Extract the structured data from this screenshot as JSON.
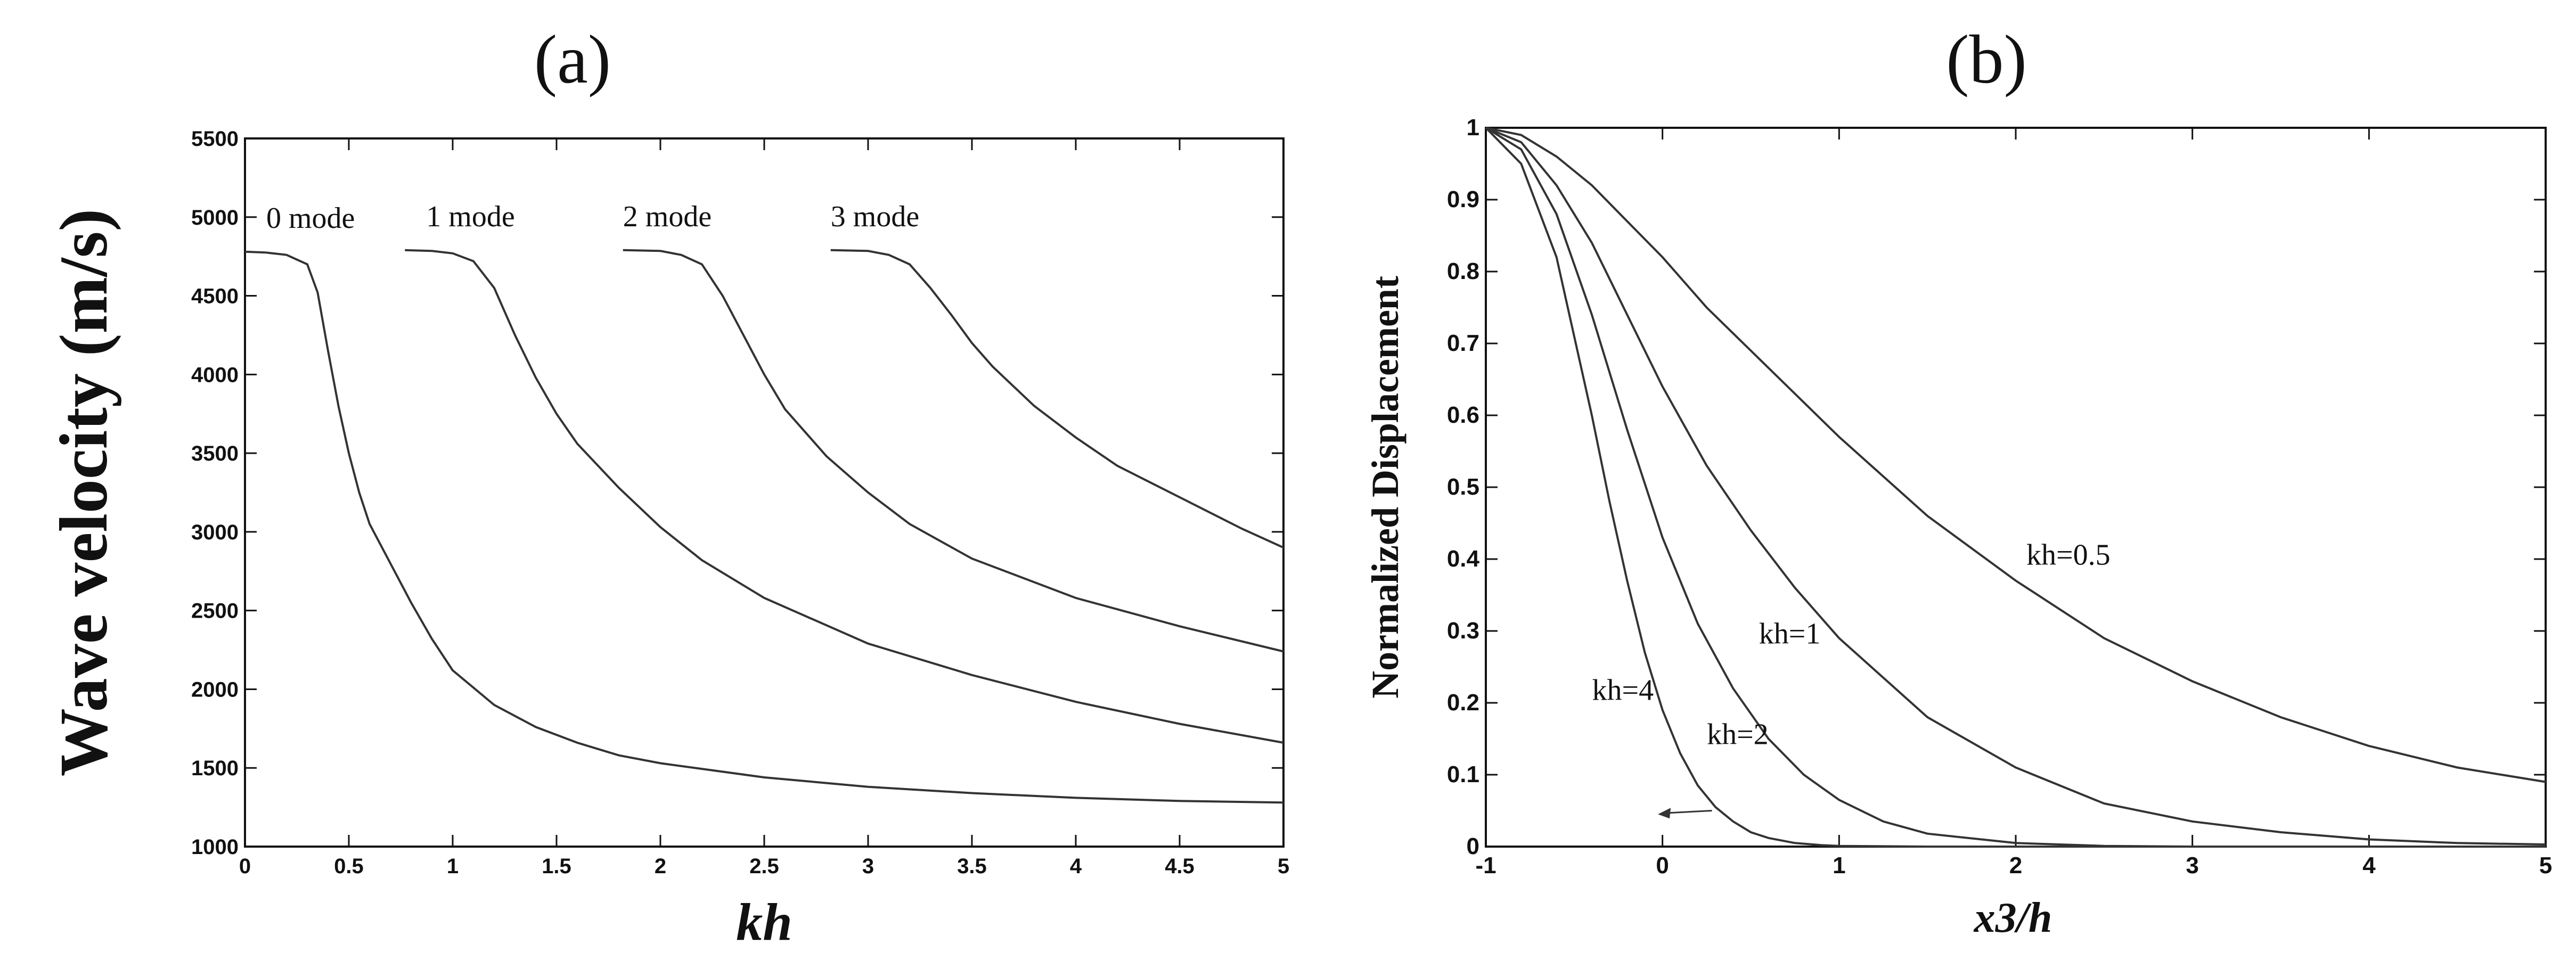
{
  "chart_data": [
    {
      "type": "line",
      "panel_label": "(a)",
      "xlabel": "kh",
      "ylabel": "Wave velocity (m/s)",
      "xlim": [
        0,
        5
      ],
      "ylim": [
        1000,
        5500
      ],
      "xticks": [
        "0",
        "0.5",
        "1",
        "1.5",
        "2",
        "2.5",
        "3",
        "3.5",
        "4",
        "4.5",
        "5"
      ],
      "yticks": [
        "1000",
        "1500",
        "2000",
        "2500",
        "3000",
        "3500",
        "4000",
        "4500",
        "5000",
        "5500"
      ],
      "grid": false,
      "series": [
        {
          "name": "0 mode",
          "x": [
            0,
            0.1,
            0.2,
            0.3,
            0.35,
            0.4,
            0.45,
            0.5,
            0.55,
            0.6,
            0.7,
            0.8,
            0.9,
            1.0,
            1.2,
            1.4,
            1.6,
            1.8,
            2.0,
            2.5,
            3.0,
            3.5,
            4.0,
            4.5,
            5.0
          ],
          "y": [
            4780,
            4775,
            4760,
            4700,
            4520,
            4150,
            3800,
            3500,
            3250,
            3050,
            2800,
            2550,
            2320,
            2120,
            1900,
            1760,
            1660,
            1580,
            1530,
            1440,
            1380,
            1340,
            1310,
            1290,
            1280
          ]
        },
        {
          "name": "1 mode",
          "x": [
            0.77,
            0.9,
            1.0,
            1.1,
            1.2,
            1.3,
            1.4,
            1.5,
            1.6,
            1.8,
            2.0,
            2.2,
            2.5,
            3.0,
            3.5,
            4.0,
            4.5,
            5.0
          ],
          "y": [
            4790,
            4785,
            4770,
            4720,
            4550,
            4250,
            3980,
            3750,
            3560,
            3280,
            3030,
            2820,
            2580,
            2290,
            2090,
            1920,
            1780,
            1660
          ]
        },
        {
          "name": "2 mode",
          "x": [
            1.82,
            2.0,
            2.1,
            2.2,
            2.3,
            2.4,
            2.5,
            2.6,
            2.8,
            3.0,
            3.2,
            3.5,
            4.0,
            4.5,
            5.0
          ],
          "y": [
            4790,
            4785,
            4760,
            4700,
            4500,
            4250,
            4000,
            3780,
            3480,
            3250,
            3050,
            2830,
            2580,
            2400,
            2240
          ]
        },
        {
          "name": "3 mode",
          "x": [
            2.82,
            3.0,
            3.1,
            3.2,
            3.3,
            3.4,
            3.5,
            3.6,
            3.8,
            4.0,
            4.2,
            4.5,
            4.8,
            5.0
          ],
          "y": [
            4790,
            4785,
            4760,
            4700,
            4550,
            4380,
            4200,
            4050,
            3800,
            3600,
            3420,
            3220,
            3020,
            2900
          ]
        }
      ]
    },
    {
      "type": "line",
      "panel_label": "(b)",
      "xlabel": "x3/h",
      "ylabel": "Normalized Displacement",
      "xlim": [
        -1,
        5
      ],
      "ylim": [
        0,
        1
      ],
      "xticks": [
        "-1",
        "0",
        "1",
        "2",
        "3",
        "4",
        "5"
      ],
      "yticks": [
        "0",
        "0.1",
        "0.2",
        "0.3",
        "0.4",
        "0.5",
        "0.6",
        "0.7",
        "0.8",
        "0.9",
        "1"
      ],
      "grid": false,
      "series": [
        {
          "name": "kh=0.5",
          "x": [
            -1,
            -0.8,
            -0.6,
            -0.4,
            -0.2,
            0,
            0.25,
            0.5,
            0.75,
            1.0,
            1.5,
            2.0,
            2.5,
            3.0,
            3.5,
            4.0,
            4.5,
            5.0
          ],
          "y": [
            1.0,
            0.99,
            0.96,
            0.92,
            0.87,
            0.82,
            0.75,
            0.69,
            0.63,
            0.57,
            0.46,
            0.37,
            0.29,
            0.23,
            0.18,
            0.14,
            0.11,
            0.09
          ]
        },
        {
          "name": "kh=1",
          "x": [
            -1,
            -0.8,
            -0.6,
            -0.4,
            -0.2,
            0,
            0.25,
            0.5,
            0.75,
            1.0,
            1.5,
            2.0,
            2.5,
            3.0,
            3.5,
            4.0,
            4.5,
            5.0
          ],
          "y": [
            1.0,
            0.98,
            0.92,
            0.84,
            0.74,
            0.64,
            0.53,
            0.44,
            0.36,
            0.29,
            0.18,
            0.11,
            0.06,
            0.035,
            0.02,
            0.01,
            0.005,
            0.003
          ]
        },
        {
          "name": "kh=2",
          "x": [
            -1,
            -0.8,
            -0.6,
            -0.4,
            -0.2,
            0,
            0.2,
            0.4,
            0.6,
            0.8,
            1.0,
            1.25,
            1.5,
            2.0,
            2.5,
            3.0,
            4.0,
            5.0
          ],
          "y": [
            1.0,
            0.97,
            0.88,
            0.74,
            0.58,
            0.43,
            0.31,
            0.22,
            0.15,
            0.1,
            0.065,
            0.035,
            0.018,
            0.005,
            0.001,
            0,
            0,
            0
          ]
        },
        {
          "name": "kh=4",
          "x": [
            -1,
            -0.8,
            -0.6,
            -0.4,
            -0.3,
            -0.2,
            -0.1,
            0,
            0.1,
            0.2,
            0.3,
            0.4,
            0.5,
            0.6,
            0.75,
            0.9,
            1.0,
            1.5,
            2.0,
            5.0
          ],
          "y": [
            1.0,
            0.95,
            0.82,
            0.6,
            0.48,
            0.37,
            0.27,
            0.19,
            0.13,
            0.085,
            0.055,
            0.035,
            0.02,
            0.012,
            0.005,
            0.002,
            0.001,
            0,
            0,
            0
          ]
        }
      ]
    }
  ]
}
